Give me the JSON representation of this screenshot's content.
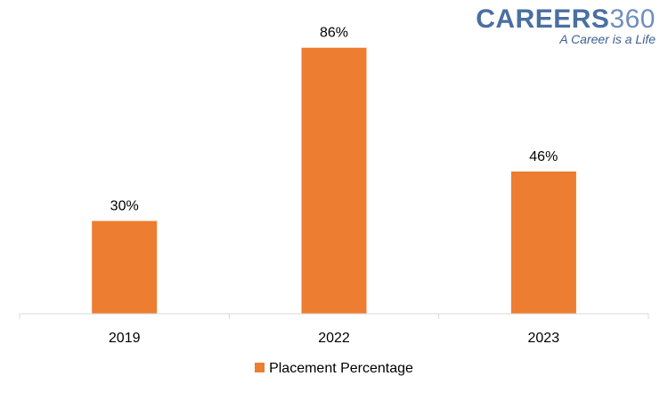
{
  "logo": {
    "name_text": "CAREERS",
    "name_number": "360",
    "tagline": "A Career is a Life"
  },
  "chart_data": {
    "type": "bar",
    "categories": [
      "2019",
      "2022",
      "2023"
    ],
    "series": [
      {
        "name": "Placement Percentage",
        "values": [
          30,
          86,
          46
        ],
        "labels": [
          "30%",
          "86%",
          "46%"
        ],
        "color": "#ED7D31"
      }
    ],
    "ylim": [
      0,
      100
    ],
    "grid": false,
    "legend": "bottom-center",
    "title": "",
    "xlabel": "",
    "ylabel": ""
  }
}
